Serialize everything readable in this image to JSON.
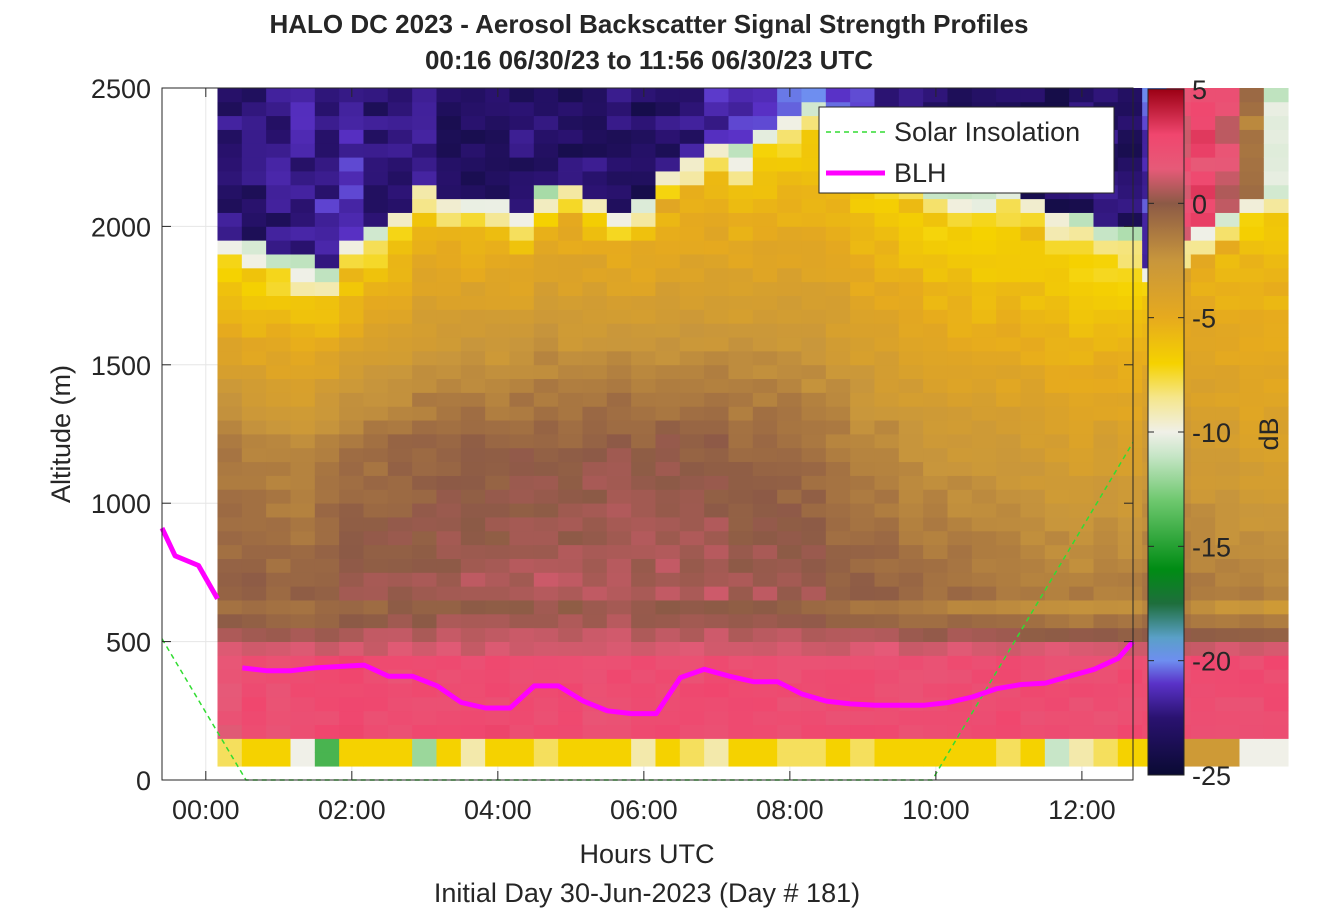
{
  "chart_data": {
    "type": "heatmap",
    "title": "HALO DC 2023 - Aerosol Backscatter Signal Strength Profiles",
    "subtitle": "00:16 06/30/23 to 11:56 06/30/23  UTC",
    "xlabel": "Hours UTC",
    "xlabel2": "Initial Day 30-Jun-2023 (Day # 181)",
    "ylabel": "Altitude (m)",
    "colorbar_label": "dB",
    "xlim_hours": [
      -0.6,
      12.7
    ],
    "ylim": [
      0,
      2500
    ],
    "x_ticks": [
      0,
      2,
      4,
      6,
      8,
      10,
      12
    ],
    "x_tick_labels": [
      "00:00",
      "02:00",
      "04:00",
      "06:00",
      "08:00",
      "10:00",
      "12:00"
    ],
    "y_ticks": [
      0,
      500,
      1000,
      1500,
      2000,
      2500
    ],
    "y_tick_labels": [
      "0",
      "500",
      "1000",
      "1500",
      "2000",
      "2500"
    ],
    "colorbar_range": [
      -25,
      5
    ],
    "colorbar_ticks": [
      5,
      0,
      -5,
      -10,
      -15,
      -20,
      -25
    ],
    "colorbar_tick_labels": [
      "5",
      "0",
      "-5",
      "-10",
      "-15",
      "-20",
      "-25"
    ],
    "colormap_stops": [
      {
        "v": -25,
        "c": "#0a0a33"
      },
      {
        "v": -22.5,
        "c": "#2a1270"
      },
      {
        "v": -21,
        "c": "#5a32c8"
      },
      {
        "v": -20,
        "c": "#6e8ef0"
      },
      {
        "v": -19,
        "c": "#5aa0c8"
      },
      {
        "v": -17.5,
        "c": "#1e6e3c"
      },
      {
        "v": -16,
        "c": "#008c14"
      },
      {
        "v": -13,
        "c": "#6ec86e"
      },
      {
        "v": -11,
        "c": "#c8e6c8"
      },
      {
        "v": -10,
        "c": "#f0f0e8"
      },
      {
        "v": -8.5,
        "c": "#f5e68c"
      },
      {
        "v": -7,
        "c": "#f5d200"
      },
      {
        "v": -5,
        "c": "#e6aa1e"
      },
      {
        "v": -2.5,
        "c": "#c8963c"
      },
      {
        "v": 0,
        "c": "#8c5a46"
      },
      {
        "v": 1.5,
        "c": "#e65a78"
      },
      {
        "v": 3,
        "c": "#f0466e"
      },
      {
        "v": 5,
        "c": "#9b0014"
      }
    ],
    "heatmap": {
      "x_start_hours": 0.16,
      "x_step_hours": 0.3333,
      "y_start_m": 50,
      "y_step_m": 50,
      "y_note": "rows start at 50 m and are 50 m tall; columns start 00:10 and are 20 min wide",
      "columns": [
        {
          "bottom": -8,
          "surf": 1.8,
          "mid": -1.5,
          "upper": -6.5,
          "top_alt": 1800,
          "aloft": -22.5
        },
        {
          "bottom": -7,
          "surf": 2.6,
          "mid": -1.8,
          "upper": -6.8,
          "top_alt": 1780,
          "aloft": -22.8
        },
        {
          "bottom": -7,
          "surf": 2.4,
          "mid": -2.0,
          "upper": -6.5,
          "top_alt": 1750,
          "aloft": -22.5
        },
        {
          "bottom": -10,
          "surf": 2.5,
          "mid": -2.2,
          "upper": -6.7,
          "top_alt": 1720,
          "aloft": -22.0
        },
        {
          "bottom": -14,
          "surf": 2.6,
          "mid": -1.6,
          "upper": -6.4,
          "top_alt": 1700,
          "aloft": -21.8
        },
        {
          "bottom": -7,
          "surf": 2.7,
          "mid": -1.2,
          "upper": -6.6,
          "top_alt": 1800,
          "aloft": -21.5
        },
        {
          "bottom": -7,
          "surf": 2.5,
          "mid": -1.0,
          "upper": -6.3,
          "top_alt": 1850,
          "aloft": -22.6
        },
        {
          "bottom": -7,
          "surf": 2.3,
          "mid": -0.8,
          "upper": -6.0,
          "top_alt": 1900,
          "aloft": -22.8
        },
        {
          "bottom": -12,
          "surf": 2.6,
          "mid": -0.7,
          "upper": -5.8,
          "top_alt": 2000,
          "aloft": -22.4
        },
        {
          "bottom": -7,
          "surf": 2.4,
          "mid": -0.5,
          "upper": -5.6,
          "top_alt": 1950,
          "aloft": -23.0
        },
        {
          "bottom": -9,
          "surf": 2.6,
          "mid": -0.4,
          "upper": -5.5,
          "top_alt": 1930,
          "aloft": -23.2
        },
        {
          "bottom": -7,
          "surf": 2.7,
          "mid": -0.6,
          "upper": -5.4,
          "top_alt": 1950,
          "aloft": -23.4
        },
        {
          "bottom": -7,
          "surf": 2.4,
          "mid": -0.3,
          "upper": -5.2,
          "top_alt": 1900,
          "aloft": -22.9
        },
        {
          "bottom": -8,
          "surf": 2.5,
          "mid": -0.2,
          "upper": -5.1,
          "top_alt": 1980,
          "aloft": -22.5
        },
        {
          "bottom": -7,
          "surf": 2.6,
          "mid": -0.5,
          "upper": -5.3,
          "top_alt": 2000,
          "aloft": -23.0
        },
        {
          "bottom": -7,
          "surf": 2.3,
          "mid": -0.1,
          "upper": -5.0,
          "top_alt": 1950,
          "aloft": -22.8
        },
        {
          "bottom": -7,
          "surf": 2.5,
          "mid": 0.0,
          "upper": -5.0,
          "top_alt": 1900,
          "aloft": -22.6
        },
        {
          "bottom": -9,
          "surf": 2.4,
          "mid": -0.3,
          "upper": -5.4,
          "top_alt": 1950,
          "aloft": -23.1
        },
        {
          "bottom": -7,
          "surf": 2.6,
          "mid": -0.2,
          "upper": -5.6,
          "top_alt": 2050,
          "aloft": -22.7
        },
        {
          "bottom": -8,
          "surf": 2.5,
          "mid": -0.4,
          "upper": -5.8,
          "top_alt": 2100,
          "aloft": -22.2
        },
        {
          "bottom": -9,
          "surf": 2.6,
          "mid": -0.3,
          "upper": -6.0,
          "top_alt": 2150,
          "aloft": -21.8
        },
        {
          "bottom": -7,
          "surf": 2.5,
          "mid": -0.6,
          "upper": -6.2,
          "top_alt": 2120,
          "aloft": -21.5
        },
        {
          "bottom": -7,
          "surf": 2.4,
          "mid": -0.5,
          "upper": -6.4,
          "top_alt": 2200,
          "aloft": -20.5
        },
        {
          "bottom": -8,
          "surf": 2.3,
          "mid": -0.8,
          "upper": -6.5,
          "top_alt": 2250,
          "aloft": -19.5
        },
        {
          "bottom": -8,
          "surf": 2.5,
          "mid": -1.0,
          "upper": -6.8,
          "top_alt": 2300,
          "aloft": -20.8
        },
        {
          "bottom": -7,
          "surf": 2.4,
          "mid": -1.4,
          "upper": -6.6,
          "top_alt": 2250,
          "aloft": -21.2
        },
        {
          "bottom": -8,
          "surf": 2.6,
          "mid": -1.8,
          "upper": -6.9,
          "top_alt": 2150,
          "aloft": -21.5
        },
        {
          "bottom": -7,
          "surf": 2.5,
          "mid": -2.0,
          "upper": -6.7,
          "top_alt": 2100,
          "aloft": -22.0
        },
        {
          "bottom": -7,
          "surf": 2.4,
          "mid": -2.4,
          "upper": -6.8,
          "top_alt": 2050,
          "aloft": -22.4
        },
        {
          "bottom": -7,
          "surf": 2.3,
          "mid": -2.6,
          "upper": -7.0,
          "top_alt": 2000,
          "aloft": -22.8
        },
        {
          "bottom": -7,
          "surf": 2.5,
          "mid": -2.8,
          "upper": -7.2,
          "top_alt": 2000,
          "aloft": -23.0
        },
        {
          "bottom": -7,
          "surf": 2.4,
          "mid": -3.0,
          "upper": -7.4,
          "top_alt": 1980,
          "aloft": -23.2
        },
        {
          "bottom": -8,
          "surf": 2.6,
          "mid": -3.2,
          "upper": -7.3,
          "top_alt": 2000,
          "aloft": -23.4
        },
        {
          "bottom": -7,
          "surf": 2.5,
          "mid": -3.4,
          "upper": -7.0,
          "top_alt": 1950,
          "aloft": -23.1
        },
        {
          "bottom": -11,
          "surf": 2.4,
          "mid": -3.6,
          "upper": -7.2,
          "top_alt": 1900,
          "aloft": -23.3
        },
        {
          "bottom": -9,
          "surf": 2.5,
          "mid": -3.8,
          "upper": -7.4,
          "top_alt": 1880,
          "aloft": -23.0
        },
        {
          "bottom": -8,
          "surf": 2.3,
          "mid": -3.5,
          "upper": -7.6,
          "top_alt": 1850,
          "aloft": -22.7
        },
        {
          "bottom": -7,
          "surf": 2.6,
          "mid": -3.8,
          "upper": -7.5,
          "top_alt": 1850,
          "aloft": -22.9
        },
        {
          "bottom": -7,
          "surf": 2.4,
          "mid": -3.2,
          "upper": -6.0,
          "top_alt": 1700,
          "aloft": -21.0
        },
        {
          "bottom": -3,
          "surf": 2.5,
          "mid": -3.0,
          "upper": -5.0,
          "top_alt": 1800,
          "aloft": 2.0
        },
        {
          "bottom": -3,
          "surf": 2.6,
          "mid": -3.4,
          "upper": -5.5,
          "top_alt": 1850,
          "aloft": 2.5
        },
        {
          "bottom": -3,
          "surf": 2.4,
          "mid": -3.6,
          "upper": -5.8,
          "top_alt": 1900,
          "aloft": 1.5
        },
        {
          "bottom": -10,
          "surf": 2.5,
          "mid": -3.8,
          "upper": -6.0,
          "top_alt": 1950,
          "aloft": -1.0
        },
        {
          "bottom": -10,
          "surf": 2.6,
          "mid": -4.0,
          "upper": -6.2,
          "top_alt": 2000,
          "aloft": -10.5
        }
      ]
    },
    "series": [
      {
        "name": "Solar Insolation",
        "style": "dashed",
        "color": "#32dc32",
        "x": [
          -0.6,
          0.55,
          9.95,
          12.7
        ],
        "y": [
          510,
          0,
          0,
          1220
        ]
      },
      {
        "name": "BLH",
        "style": "solid",
        "color": "#ff00ff",
        "segments": [
          {
            "x": [
              -0.6,
              -0.42,
              -0.1,
              0.16
            ],
            "y": [
              910,
              810,
              775,
              655
            ]
          },
          {
            "x": [
              0.5,
              0.83,
              1.17,
              1.5,
              1.83,
              2.17,
              2.5,
              2.83,
              3.17,
              3.5,
              3.83,
              4.17,
              4.5,
              4.83,
              5.17,
              5.5,
              5.83,
              6.17,
              6.5,
              6.83,
              7.17,
              7.5,
              7.83,
              8.17,
              8.5,
              8.83,
              9.17,
              9.5,
              9.83,
              10.17,
              10.5,
              10.83,
              11.17,
              11.5,
              11.83,
              12.17,
              12.5,
              12.7
            ],
            "y": [
              405,
              395,
              395,
              405,
              410,
              415,
              375,
              375,
              340,
              280,
              260,
              260,
              340,
              340,
              285,
              250,
              240,
              240,
              370,
              400,
              375,
              355,
              355,
              310,
              285,
              275,
              270,
              270,
              270,
              280,
              300,
              330,
              345,
              350,
              375,
              400,
              440,
              500
            ]
          }
        ]
      }
    ],
    "grid": true,
    "legend_position": "top-right"
  }
}
